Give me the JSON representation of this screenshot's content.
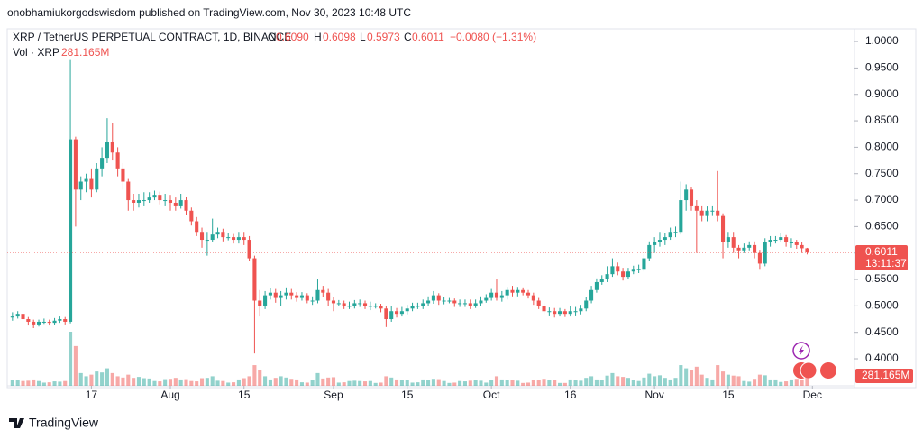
{
  "header": {
    "published": "onobhamiukorgodswisdom published on TradingView.com, Nov 30, 2023 10:48 UTC"
  },
  "footer": {
    "logo": "TradingView"
  },
  "chart_data": {
    "type": "candlestick",
    "legend": {
      "symbol": "XRP / TetherUS PERPETUAL CONTRACT, 1D, BINANCE",
      "o_key": "O",
      "o": "0.6090",
      "h_key": "H",
      "h": "0.6098",
      "l_key": "L",
      "l": "0.5973",
      "c_key": "C",
      "c": "0.6011",
      "change": "−0.0080 (−1.31%)",
      "vol": "Vol · XRP"
    },
    "last_price_label": "0.6011",
    "countdown": "13:11:37",
    "volume_label": "281.165M",
    "up_color": "#26a69a",
    "down_color": "#ef5350",
    "x": [
      "2023-07-02",
      "2023-07-03",
      "2023-07-04",
      "2023-07-05",
      "2023-07-06",
      "2023-07-07",
      "2023-07-08",
      "2023-07-09",
      "2023-07-10",
      "2023-07-11",
      "2023-07-12",
      "2023-07-13",
      "2023-07-14",
      "2023-07-15",
      "2023-07-16",
      "2023-07-17",
      "2023-07-18",
      "2023-07-19",
      "2023-07-20",
      "2023-07-21",
      "2023-07-22",
      "2023-07-23",
      "2023-07-24",
      "2023-07-25",
      "2023-07-26",
      "2023-07-27",
      "2023-07-28",
      "2023-07-29",
      "2023-07-30",
      "2023-07-31",
      "2023-08-01",
      "2023-08-02",
      "2023-08-03",
      "2023-08-04",
      "2023-08-05",
      "2023-08-06",
      "2023-08-07",
      "2023-08-08",
      "2023-08-09",
      "2023-08-10",
      "2023-08-11",
      "2023-08-12",
      "2023-08-13",
      "2023-08-14",
      "2023-08-15",
      "2023-08-16",
      "2023-08-17",
      "2023-08-18",
      "2023-08-19",
      "2023-08-20",
      "2023-08-21",
      "2023-08-22",
      "2023-08-23",
      "2023-08-24",
      "2023-08-25",
      "2023-08-26",
      "2023-08-27",
      "2023-08-28",
      "2023-08-29",
      "2023-08-30",
      "2023-08-31",
      "2023-09-01",
      "2023-09-02",
      "2023-09-03",
      "2023-09-04",
      "2023-09-05",
      "2023-09-06",
      "2023-09-07",
      "2023-09-08",
      "2023-09-09",
      "2023-09-10",
      "2023-09-11",
      "2023-09-12",
      "2023-09-13",
      "2023-09-14",
      "2023-09-15",
      "2023-09-16",
      "2023-09-17",
      "2023-09-18",
      "2023-09-19",
      "2023-09-20",
      "2023-09-21",
      "2023-09-22",
      "2023-09-23",
      "2023-09-24",
      "2023-09-25",
      "2023-09-26",
      "2023-09-27",
      "2023-09-28",
      "2023-09-29",
      "2023-09-30",
      "2023-10-01",
      "2023-10-02",
      "2023-10-03",
      "2023-10-04",
      "2023-10-05",
      "2023-10-06",
      "2023-10-07",
      "2023-10-08",
      "2023-10-09",
      "2023-10-10",
      "2023-10-11",
      "2023-10-12",
      "2023-10-13",
      "2023-10-14",
      "2023-10-15",
      "2023-10-16",
      "2023-10-17",
      "2023-10-18",
      "2023-10-19",
      "2023-10-20",
      "2023-10-21",
      "2023-10-22",
      "2023-10-23",
      "2023-10-24",
      "2023-10-25",
      "2023-10-26",
      "2023-10-27",
      "2023-10-28",
      "2023-10-29",
      "2023-10-30",
      "2023-10-31",
      "2023-11-01",
      "2023-11-02",
      "2023-11-03",
      "2023-11-04",
      "2023-11-05",
      "2023-11-06",
      "2023-11-07",
      "2023-11-08",
      "2023-11-09",
      "2023-11-10",
      "2023-11-11",
      "2023-11-12",
      "2023-11-13",
      "2023-11-14",
      "2023-11-15",
      "2023-11-16",
      "2023-11-17",
      "2023-11-18",
      "2023-11-19",
      "2023-11-20",
      "2023-11-21",
      "2023-11-22",
      "2023-11-23",
      "2023-11-24",
      "2023-11-25",
      "2023-11-26",
      "2023-11-27",
      "2023-11-28",
      "2023-11-29",
      "2023-11-30"
    ],
    "open": [
      0.478,
      0.48,
      0.485,
      0.475,
      0.47,
      0.465,
      0.47,
      0.47,
      0.468,
      0.472,
      0.475,
      0.47,
      0.815,
      0.72,
      0.735,
      0.74,
      0.72,
      0.76,
      0.78,
      0.81,
      0.79,
      0.76,
      0.735,
      0.7,
      0.695,
      0.7,
      0.7,
      0.705,
      0.71,
      0.7,
      0.7,
      0.695,
      0.69,
      0.7,
      0.68,
      0.66,
      0.64,
      0.625,
      0.625,
      0.635,
      0.64,
      0.63,
      0.63,
      0.625,
      0.63,
      0.625,
      0.59,
      0.51,
      0.5,
      0.52,
      0.525,
      0.515,
      0.52,
      0.525,
      0.52,
      0.515,
      0.52,
      0.51,
      0.51,
      0.53,
      0.525,
      0.51,
      0.505,
      0.505,
      0.5,
      0.5,
      0.505,
      0.505,
      0.5,
      0.5,
      0.5,
      0.495,
      0.475,
      0.49,
      0.485,
      0.49,
      0.495,
      0.5,
      0.5,
      0.505,
      0.51,
      0.52,
      0.51,
      0.51,
      0.51,
      0.505,
      0.505,
      0.505,
      0.5,
      0.505,
      0.51,
      0.515,
      0.525,
      0.515,
      0.52,
      0.53,
      0.525,
      0.53,
      0.525,
      0.52,
      0.51,
      0.5,
      0.49,
      0.49,
      0.485,
      0.49,
      0.485,
      0.49,
      0.49,
      0.495,
      0.51,
      0.53,
      0.545,
      0.55,
      0.56,
      0.575,
      0.565,
      0.555,
      0.565,
      0.57,
      0.57,
      0.59,
      0.615,
      0.62,
      0.625,
      0.63,
      0.64,
      0.64,
      0.7,
      0.72,
      0.69,
      0.68,
      0.67,
      0.68,
      0.68,
      0.67,
      0.62,
      0.63,
      0.61,
      0.605,
      0.61,
      0.615,
      0.6,
      0.58,
      0.62,
      0.625,
      0.625,
      0.63,
      0.62,
      0.62,
      0.615,
      0.609
    ],
    "high": [
      0.488,
      0.49,
      0.489,
      0.479,
      0.474,
      0.474,
      0.476,
      0.474,
      0.477,
      0.48,
      0.479,
      0.965,
      0.82,
      0.745,
      0.75,
      0.76,
      0.77,
      0.8,
      0.855,
      0.845,
      0.8,
      0.77,
      0.74,
      0.712,
      0.712,
      0.715,
      0.715,
      0.718,
      0.716,
      0.712,
      0.71,
      0.705,
      0.712,
      0.706,
      0.686,
      0.668,
      0.648,
      0.64,
      0.665,
      0.648,
      0.646,
      0.638,
      0.636,
      0.64,
      0.64,
      0.632,
      0.595,
      0.53,
      0.528,
      0.534,
      0.532,
      0.528,
      0.535,
      0.532,
      0.526,
      0.526,
      0.524,
      0.518,
      0.55,
      0.538,
      0.532,
      0.516,
      0.511,
      0.51,
      0.508,
      0.511,
      0.512,
      0.51,
      0.508,
      0.505,
      0.504,
      0.499,
      0.5,
      0.496,
      0.498,
      0.502,
      0.506,
      0.506,
      0.512,
      0.518,
      0.528,
      0.524,
      0.517,
      0.515,
      0.514,
      0.512,
      0.512,
      0.512,
      0.512,
      0.518,
      0.522,
      0.532,
      0.55,
      0.528,
      0.536,
      0.538,
      0.536,
      0.535,
      0.53,
      0.525,
      0.515,
      0.505,
      0.497,
      0.496,
      0.496,
      0.494,
      0.5,
      0.498,
      0.502,
      0.516,
      0.538,
      0.552,
      0.558,
      0.575,
      0.59,
      0.582,
      0.572,
      0.572,
      0.576,
      0.578,
      0.598,
      0.622,
      0.63,
      0.64,
      0.638,
      0.648,
      0.65,
      0.735,
      0.73,
      0.725,
      0.7,
      0.69,
      0.688,
      0.69,
      0.755,
      0.675,
      0.64,
      0.64,
      0.615,
      0.618,
      0.622,
      0.622,
      0.606,
      0.628,
      0.632,
      0.632,
      0.638,
      0.634,
      0.628,
      0.625,
      0.62,
      0.6098
    ],
    "low": [
      0.472,
      0.476,
      0.471,
      0.463,
      0.458,
      0.461,
      0.466,
      0.463,
      0.464,
      0.468,
      0.465,
      0.467,
      0.65,
      0.7,
      0.715,
      0.705,
      0.715,
      0.745,
      0.77,
      0.775,
      0.745,
      0.72,
      0.68,
      0.68,
      0.686,
      0.69,
      0.695,
      0.7,
      0.692,
      0.69,
      0.68,
      0.68,
      0.684,
      0.672,
      0.652,
      0.632,
      0.61,
      0.595,
      0.62,
      0.628,
      0.622,
      0.624,
      0.618,
      0.618,
      0.615,
      0.585,
      0.41,
      0.48,
      0.494,
      0.512,
      0.506,
      0.5,
      0.512,
      0.512,
      0.508,
      0.51,
      0.505,
      0.502,
      0.505,
      0.516,
      0.5,
      0.49,
      0.499,
      0.494,
      0.494,
      0.495,
      0.498,
      0.494,
      0.492,
      0.495,
      0.488,
      0.46,
      0.47,
      0.478,
      0.48,
      0.484,
      0.49,
      0.494,
      0.494,
      0.5,
      0.504,
      0.502,
      0.503,
      0.505,
      0.498,
      0.498,
      0.498,
      0.494,
      0.496,
      0.5,
      0.506,
      0.51,
      0.51,
      0.508,
      0.512,
      0.518,
      0.518,
      0.52,
      0.514,
      0.502,
      0.494,
      0.484,
      0.482,
      0.478,
      0.48,
      0.479,
      0.48,
      0.482,
      0.484,
      0.49,
      0.505,
      0.525,
      0.54,
      0.545,
      0.555,
      0.558,
      0.548,
      0.55,
      0.56,
      0.562,
      0.565,
      0.585,
      0.6,
      0.612,
      0.615,
      0.625,
      0.63,
      0.635,
      0.68,
      0.68,
      0.6,
      0.66,
      0.66,
      0.67,
      0.66,
      0.59,
      0.61,
      0.6,
      0.59,
      0.6,
      0.605,
      0.59,
      0.57,
      0.575,
      0.612,
      0.618,
      0.62,
      0.612,
      0.61,
      0.608,
      0.6,
      0.5973
    ],
    "close": [
      0.48,
      0.485,
      0.475,
      0.47,
      0.465,
      0.47,
      0.47,
      0.468,
      0.472,
      0.475,
      0.47,
      0.815,
      0.72,
      0.735,
      0.74,
      0.72,
      0.76,
      0.78,
      0.81,
      0.79,
      0.76,
      0.735,
      0.7,
      0.695,
      0.7,
      0.7,
      0.705,
      0.71,
      0.7,
      0.7,
      0.695,
      0.69,
      0.7,
      0.68,
      0.66,
      0.64,
      0.625,
      0.625,
      0.635,
      0.64,
      0.63,
      0.63,
      0.625,
      0.63,
      0.625,
      0.59,
      0.51,
      0.5,
      0.52,
      0.525,
      0.515,
      0.52,
      0.525,
      0.52,
      0.515,
      0.52,
      0.51,
      0.51,
      0.53,
      0.525,
      0.51,
      0.505,
      0.505,
      0.5,
      0.5,
      0.505,
      0.505,
      0.5,
      0.5,
      0.5,
      0.495,
      0.475,
      0.49,
      0.485,
      0.49,
      0.495,
      0.5,
      0.5,
      0.505,
      0.51,
      0.52,
      0.51,
      0.51,
      0.51,
      0.505,
      0.505,
      0.505,
      0.5,
      0.505,
      0.51,
      0.515,
      0.525,
      0.515,
      0.52,
      0.53,
      0.525,
      0.53,
      0.525,
      0.52,
      0.51,
      0.5,
      0.49,
      0.49,
      0.485,
      0.49,
      0.485,
      0.49,
      0.49,
      0.495,
      0.51,
      0.53,
      0.545,
      0.55,
      0.56,
      0.575,
      0.565,
      0.555,
      0.565,
      0.57,
      0.57,
      0.59,
      0.615,
      0.62,
      0.625,
      0.63,
      0.64,
      0.64,
      0.7,
      0.72,
      0.69,
      0.68,
      0.67,
      0.68,
      0.68,
      0.67,
      0.62,
      0.63,
      0.61,
      0.605,
      0.61,
      0.615,
      0.6,
      0.58,
      0.62,
      0.625,
      0.625,
      0.63,
      0.62,
      0.62,
      0.615,
      0.609,
      0.6011
    ],
    "volume": [
      180,
      170,
      150,
      160,
      200,
      150,
      100,
      110,
      140,
      130,
      150,
      1700,
      1250,
      400,
      300,
      350,
      450,
      420,
      550,
      400,
      300,
      260,
      350,
      250,
      280,
      240,
      230,
      150,
      140,
      210,
      220,
      250,
      200,
      210,
      150,
      140,
      240,
      250,
      300,
      160,
      150,
      100,
      110,
      200,
      240,
      300,
      650,
      500,
      300,
      200,
      250,
      300,
      260,
      220,
      200,
      110,
      100,
      170,
      400,
      230,
      260,
      270,
      100,
      110,
      150,
      160,
      150,
      140,
      150,
      90,
      100,
      300,
      260,
      200,
      180,
      170,
      100,
      110,
      200,
      190,
      220,
      210,
      150,
      90,
      100,
      150,
      140,
      160,
      170,
      160,
      100,
      170,
      300,
      200,
      180,
      170,
      160,
      90,
      100,
      190,
      180,
      220,
      180,
      170,
      90,
      90,
      200,
      170,
      160,
      250,
      300,
      200,
      180,
      320,
      400,
      300,
      280,
      250,
      170,
      150,
      260,
      380,
      300,
      330,
      250,
      200,
      250,
      650,
      550,
      500,
      600,
      350,
      250,
      200,
      650,
      450,
      350,
      320,
      300,
      150,
      130,
      220,
      350,
      330,
      200,
      200,
      120,
      140,
      200,
      220,
      200,
      281.165
    ],
    "xlim": [
      "2023-07-01",
      "2023-12-09"
    ],
    "xticks": [
      {
        "value": "2023-07-17",
        "label": "17"
      },
      {
        "value": "2023-08-01",
        "label": "Aug"
      },
      {
        "value": "2023-08-15",
        "label": "15"
      },
      {
        "value": "2023-09-01",
        "label": "Sep"
      },
      {
        "value": "2023-09-15",
        "label": "15"
      },
      {
        "value": "2023-10-01",
        "label": "Oct"
      },
      {
        "value": "2023-10-16",
        "label": "16"
      },
      {
        "value": "2023-11-01",
        "label": "Nov"
      },
      {
        "value": "2023-11-15",
        "label": "15"
      },
      {
        "value": "2023-12-01",
        "label": "Dec"
      }
    ],
    "ylim": [
      0.354,
      1.024
    ],
    "yticks": [
      {
        "value": 0.4,
        "label": "0.4000"
      },
      {
        "value": 0.45,
        "label": "0.4500"
      },
      {
        "value": 0.5,
        "label": "0.5000"
      },
      {
        "value": 0.55,
        "label": "0.5500"
      },
      {
        "value": 0.6,
        "label": "0.6000"
      },
      {
        "value": 0.65,
        "label": "0.6500"
      },
      {
        "value": 0.7,
        "label": "0.7000"
      },
      {
        "value": 0.75,
        "label": "0.7500"
      },
      {
        "value": 0.8,
        "label": "0.8000"
      },
      {
        "value": 0.85,
        "label": "0.8500"
      },
      {
        "value": 0.9,
        "label": "0.9000"
      },
      {
        "value": 0.95,
        "label": "0.9500"
      },
      {
        "value": 1.0,
        "label": "1.0000"
      }
    ],
    "grid": false
  }
}
